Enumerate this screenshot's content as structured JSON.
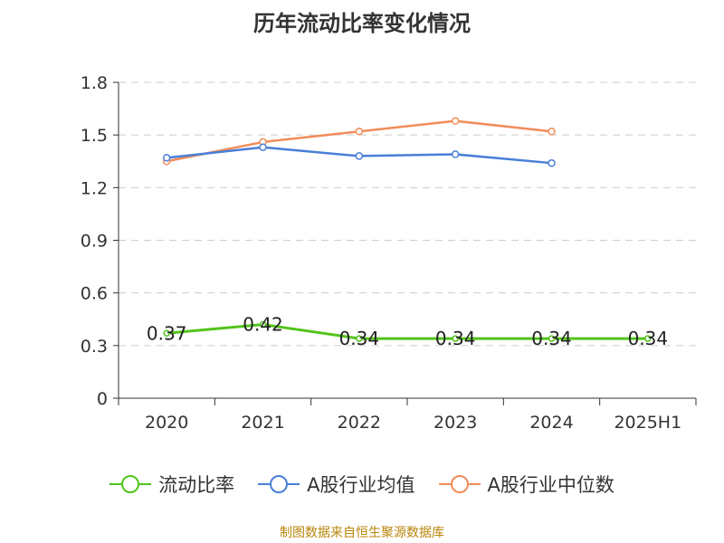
{
  "chart_data": {
    "type": "line",
    "title": "历年流动比率变化情况",
    "categories": [
      "2020",
      "2021",
      "2022",
      "2023",
      "2024",
      "2025H1"
    ],
    "ylim": [
      0,
      1.8
    ],
    "yticks": [
      "0",
      "0.3",
      "0.6",
      "0.9",
      "1.2",
      "1.5",
      "1.8"
    ],
    "ytick_values": [
      0,
      0.3,
      0.6,
      0.9,
      1.2,
      1.5,
      1.8
    ],
    "grid": true,
    "legend_position": "bottom",
    "series": [
      {
        "name": "流动比率",
        "color": "#52c41a",
        "values": [
          0.37,
          0.42,
          0.34,
          0.34,
          0.34,
          0.34
        ],
        "labels": [
          "0.37",
          "0.42",
          "0.34",
          "0.34",
          "0.34",
          "0.34"
        ]
      },
      {
        "name": "A股行业均值",
        "color": "#4a7fd8",
        "values": [
          1.37,
          1.43,
          1.38,
          1.39,
          1.34,
          null
        ]
      },
      {
        "name": "A股行业中位数",
        "color": "#f28c5a",
        "values": [
          1.35,
          1.46,
          1.52,
          1.58,
          1.52,
          null
        ]
      }
    ]
  },
  "source_note": "制图数据来自恒生聚源数据库"
}
